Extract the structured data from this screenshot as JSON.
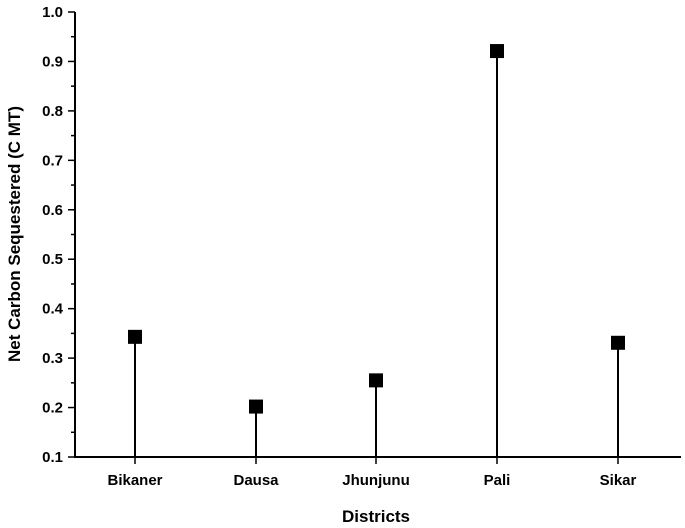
{
  "chart_data": {
    "type": "scatter",
    "style": "drop-line (stem) plot with square markers",
    "categories": [
      "Bikaner",
      "Dausa",
      "Jhunjunu",
      "Pali",
      "Sikar"
    ],
    "values": [
      0.343,
      0.202,
      0.255,
      0.921,
      0.331
    ],
    "xlabel": "Districts",
    "ylabel": "Net Carbon Sequestered (C MT)",
    "ylim": [
      0.1,
      1.0
    ],
    "yticks": [
      0.1,
      0.2,
      0.3,
      0.4,
      0.5,
      0.6,
      0.7,
      0.8,
      0.9,
      1.0
    ],
    "ytick_labels": [
      "0.1",
      "0.2",
      "0.3",
      "0.4",
      "0.5",
      "0.6",
      "0.7",
      "0.8",
      "0.9",
      "1.0"
    ],
    "grid": false,
    "legend": "none",
    "colors": {
      "marker": "#000000",
      "stem": "#000000",
      "axes": "#000000"
    }
  }
}
